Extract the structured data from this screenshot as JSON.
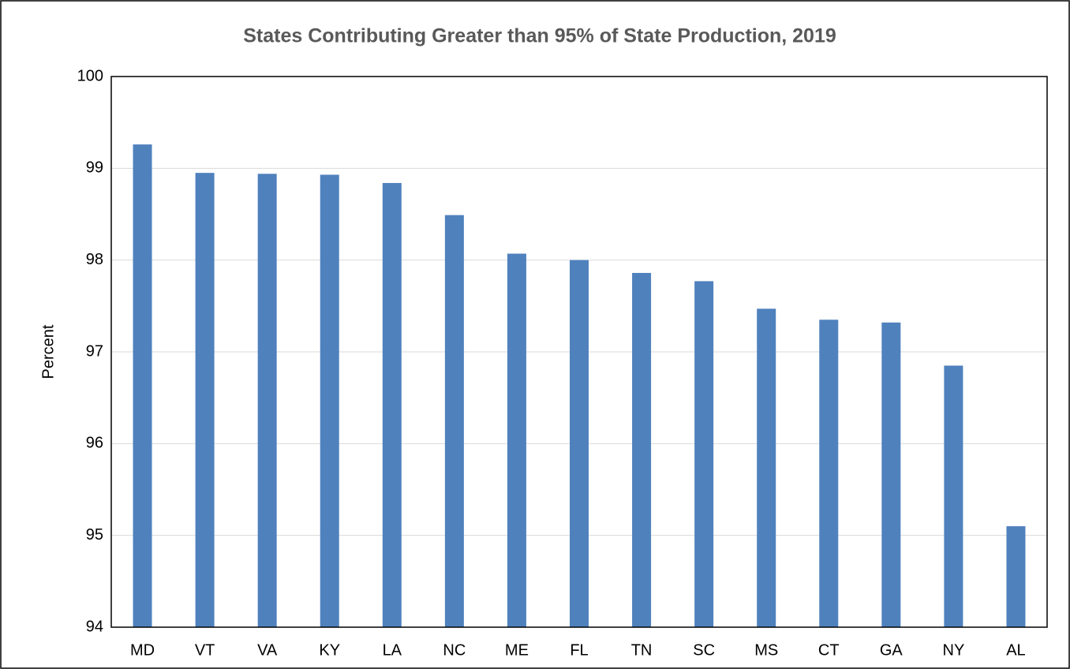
{
  "chart_data": {
    "type": "bar",
    "title": "States Contributing Greater than 95% of State Production, 2019",
    "ylabel": "Percent",
    "categories": [
      "MD",
      "VT",
      "VA",
      "KY",
      "LA",
      "NC",
      "ME",
      "FL",
      "TN",
      "SC",
      "MS",
      "CT",
      "GA",
      "NY",
      "AL"
    ],
    "values": [
      99.26,
      98.95,
      98.94,
      98.93,
      98.84,
      98.49,
      98.07,
      98.0,
      97.86,
      97.77,
      97.47,
      97.35,
      97.32,
      96.85,
      95.1
    ],
    "color": "#4f81bd",
    "ylim": [
      94,
      100
    ],
    "yticks": [
      94,
      95,
      96,
      97,
      98,
      99,
      100
    ],
    "grid": true
  }
}
